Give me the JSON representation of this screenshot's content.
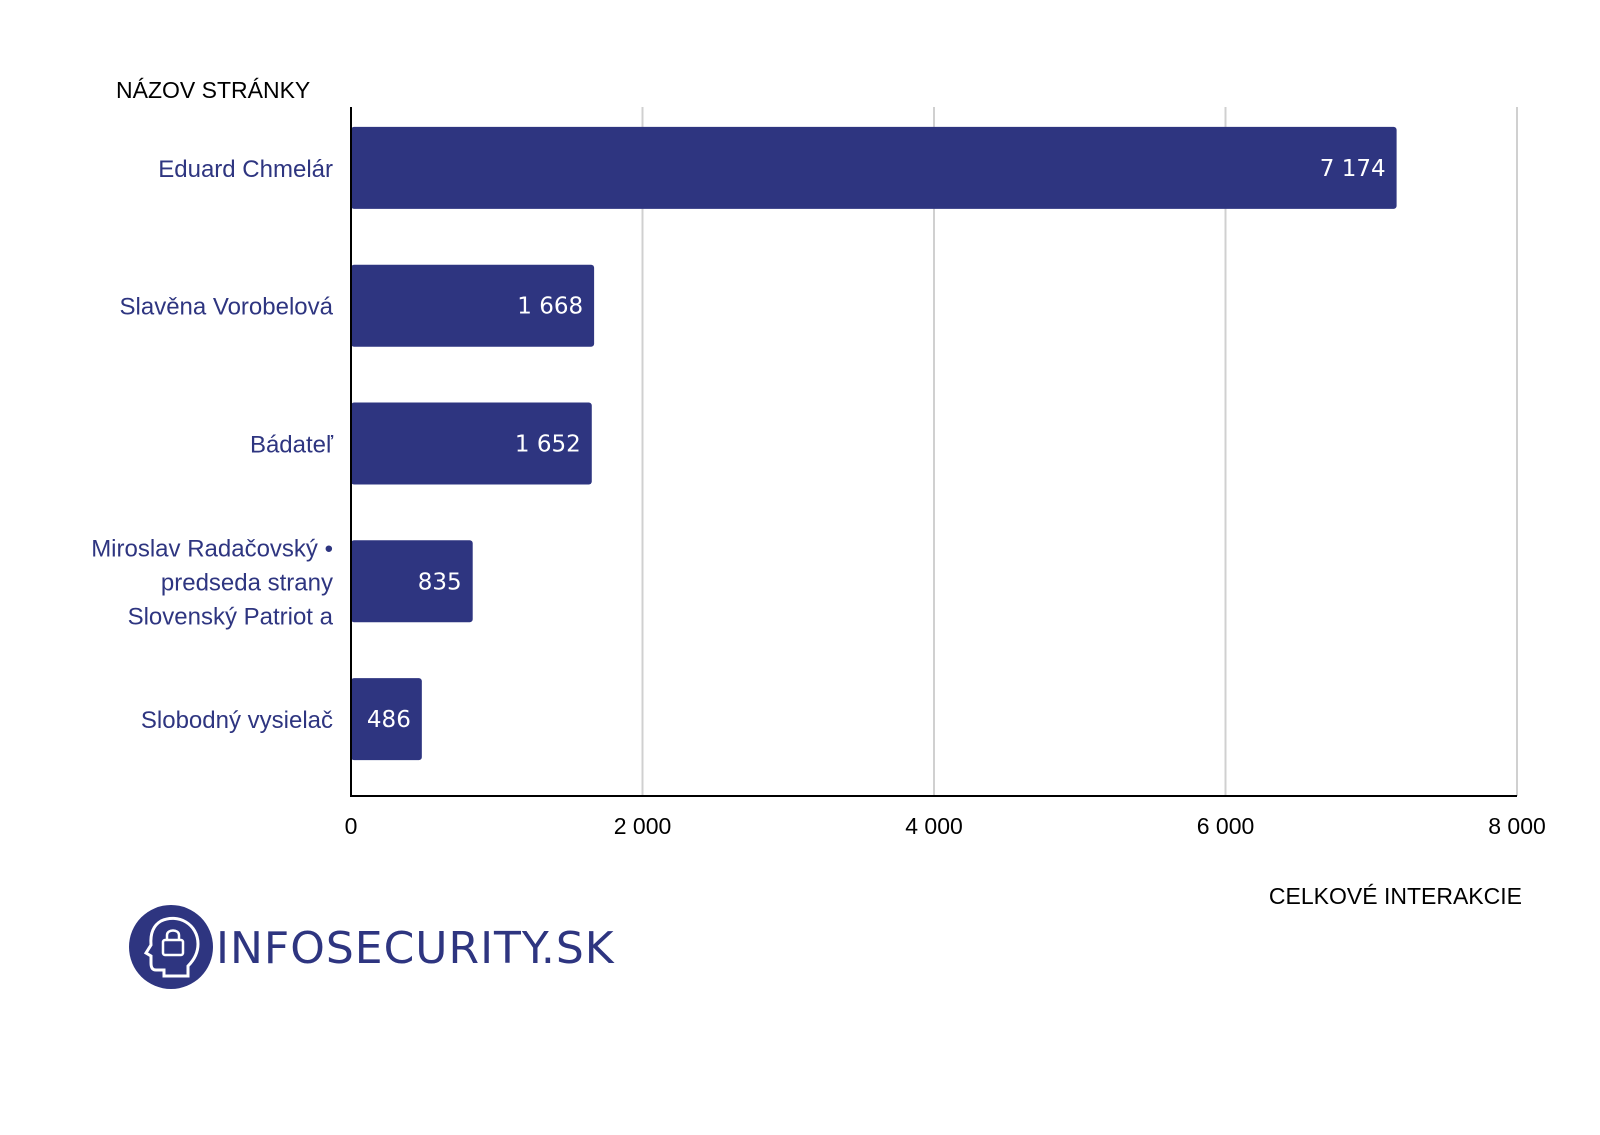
{
  "chart_data": {
    "type": "bar",
    "orientation": "horizontal",
    "categories": [
      [
        "Eduard Chmelár"
      ],
      [
        "Slavěna Vorobelová"
      ],
      [
        "Bádateľ"
      ],
      [
        "Miroslav Radačovský •",
        "predseda strany",
        "Slovenský Patriot a"
      ],
      [
        "Slobodný vysielač"
      ]
    ],
    "values": [
      7174,
      1668,
      1652,
      835,
      486
    ],
    "value_labels": [
      "7 174",
      "1 668",
      "1 652",
      "835",
      "486"
    ],
    "xlabel": "CELKOVÉ INTERAKCIE",
    "ylabel": "NÁZOV STRÁNKY",
    "xlim": [
      0,
      8000
    ],
    "xticks": [
      0,
      2000,
      4000,
      6000,
      8000
    ],
    "xtick_labels": [
      "0",
      "2 000",
      "4 000",
      "6 000",
      "8 000"
    ],
    "grid": "vertical",
    "colors": {
      "bar": "#2E3580",
      "category_text": "#2E3580",
      "grid": "#d0d0d0",
      "axis": "#000000"
    }
  },
  "brand": {
    "text": "INFOSECURITY.SK",
    "icon": "head-with-lock-icon",
    "color": "#2E3580"
  }
}
